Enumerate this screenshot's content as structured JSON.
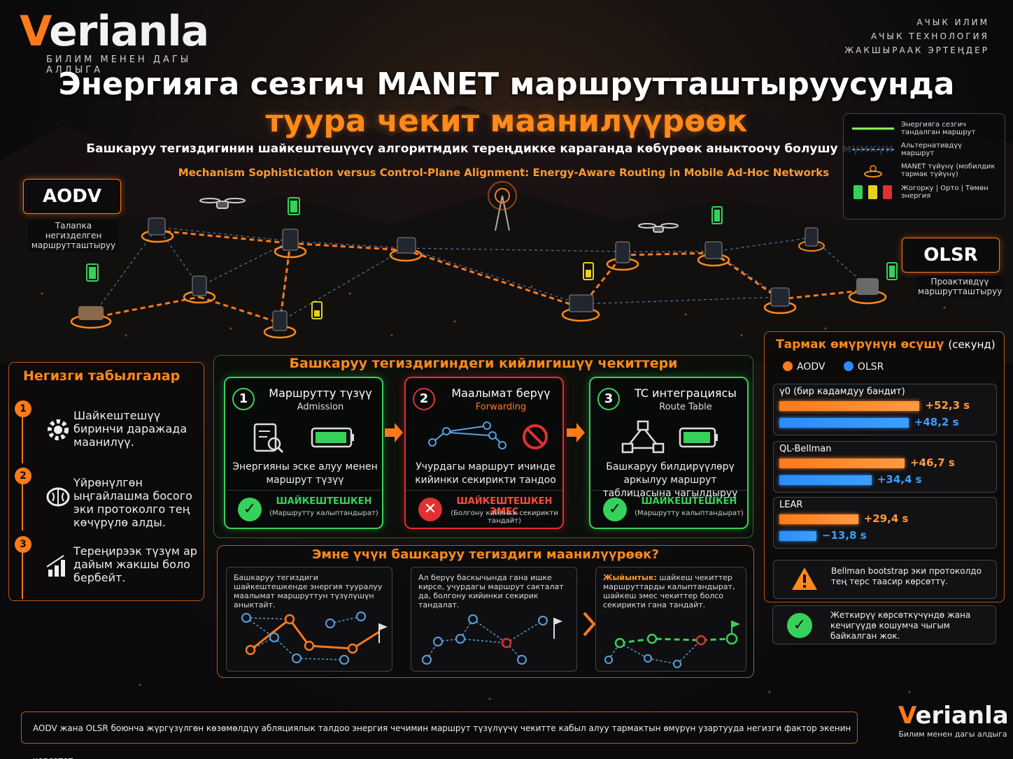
{
  "brand": {
    "name_v": "V",
    "name_rest": "erianla",
    "tagline": "БИЛИМ МЕНЕН ДАГЫ АЛДЫГА"
  },
  "motto": [
    "АЧЫК ИЛИМ",
    "АЧЫК ТЕХНОЛОГИЯ",
    "ЖАКШЫРААК ЭРТЕҢДЕР"
  ],
  "title": {
    "line1": "Энергияга сезгич MANET маршрутташтыруусунда",
    "line2": "туура чекит маанилүүрөөк",
    "subtitle": "Башкаруу тегиздигинин шайкештешүүсү алгоритмдик тереңдикке караганда көбүрөөк аныктоочу болушу мүмкүн",
    "english": "Mechanism Sophistication versus Control-Plane Alignment: Energy-Aware Routing in Mobile Ad-Hoc Networks"
  },
  "legend": {
    "energy_route": "Энергияга сезгич тандалган маршрут",
    "alt_route": "Альтернативдүү маршрут",
    "node": "MANET түйүнү (мобилдик тармак түйүнү)",
    "battery": "Жогорку | Орто | Төмөн энергия"
  },
  "protocols": {
    "aodv": "AODV",
    "aodv_sub": "Талапка негизделген маршрутташтыруу",
    "olsr": "OLSR",
    "olsr_sub": "Проактивдүү маршрутташтыруу"
  },
  "findings": {
    "title": "Негизги табылгалар",
    "items": [
      {
        "num": "1",
        "icon": "gear-icon",
        "text": "Шайкештешүү биринчи даражада маанилүү."
      },
      {
        "num": "2",
        "icon": "brain-icon",
        "text": "Үйрөнүлгөн ыңгайлашма босого эки протоколго тең көчүрүлө алды."
      },
      {
        "num": "3",
        "icon": "bars-growth-icon",
        "text": "Тереңирээк түзүм ар дайым жакшы боло бербейт."
      }
    ]
  },
  "control_points": {
    "title": "Башкаруу тегиздигиндеги кийлигишүү чекиттери",
    "cards": [
      {
        "num": "1",
        "title": "Маршрутту түзүү",
        "sub": "Admission",
        "desc": "Энергияны эске алуу менен маршрут түзүү",
        "status": "ШАЙКЕШТЕШКЕН",
        "status_sub": "(Маршрутту калыптандырат)",
        "ok": true
      },
      {
        "num": "2",
        "title": "Маалымат берүү",
        "sub": "Forwarding",
        "desc": "Учурдагы маршрут ичинде кийинки секирикти тандоо",
        "status": "ШАЙКЕШТЕШКЕН ЭМЕС",
        "status_sub": "(Болгону кийинки секирикти тандайт)",
        "ok": false
      },
      {
        "num": "3",
        "title": "TC интеграциясы",
        "sub": "Route Table",
        "desc": "Башкаруу билдирүүлөрү аркылуу маршрут таблицасына чагылдыруу",
        "status": "ШАЙКЕШТЕШКЕН",
        "status_sub": "(Маршрутту калыптандырат)",
        "ok": true
      }
    ]
  },
  "why": {
    "title": "Эмне үчүн башкаруу тегиздиги маанилүүрөөк?",
    "panels": [
      {
        "label": "",
        "text": "Башкаруу тегиздиги шайкештешкенде энергия тууралуу маалымат маршруттун түзүлүшүн аныктайт."
      },
      {
        "label": "",
        "text": "Ал берүү баскычында гана ишке кирсе, учурдагы маршрут сакталат да, болгону кийинки секирик тандалат."
      },
      {
        "label": "Жыйынтык:",
        "text": "шайкеш чекиттер маршруттарды калыптандырат, шайкеш эмес чекиттер болсо секирикти гана тандайт."
      }
    ]
  },
  "lifetime": {
    "title": "Тармак өмүрүнүн өсүшү",
    "unit": "(секунд)",
    "series": [
      {
        "name": "AODV",
        "color": "#ff7a1a"
      },
      {
        "name": "OLSR",
        "color": "#2b8cff"
      }
    ],
    "groups": [
      {
        "name": "γ0 (бир кадамдуу бандит)",
        "aodv": 52.3,
        "olsr": 48.2,
        "aodv_label": "+52,3 s",
        "olsr_label": "+48,2 s"
      },
      {
        "name": "QL-Bellman",
        "aodv": 46.7,
        "olsr": 34.4,
        "aodv_label": "+46,7 s",
        "olsr_label": "+34,4 s"
      },
      {
        "name": "LEAR",
        "aodv": 29.4,
        "olsr": -13.8,
        "aodv_label": "+29,4 s",
        "olsr_label": "−13,8 s"
      }
    ],
    "notes": [
      {
        "icon": "warning-icon",
        "text": "Bellman bootstrap эки протоколдо тең терс таасир көрсөттү."
      },
      {
        "icon": "check-icon",
        "text": "Жеткирүү көрсөткүчүндө жана кечигүүдө кошумча чыгым байкалган жок."
      }
    ]
  },
  "footer": {
    "text": "AODV жана OLSR боюнча жүргүзүлгөн көзөмөлдүү абляциялык талдоо энергия чечимин маршрут түзүлүүчү чекитте кабыл алуу тармактын өмүрүн узартууда негизги фактор экенин көрсөтөт.",
    "brand_v": "V",
    "brand_rest": "erianla",
    "brand_tag": "Билим менен дагы алдыга"
  },
  "colors": {
    "accent": "#ff7a1a",
    "ok": "#36d15a",
    "bad": "#e03030",
    "olsr": "#2b8cff"
  }
}
